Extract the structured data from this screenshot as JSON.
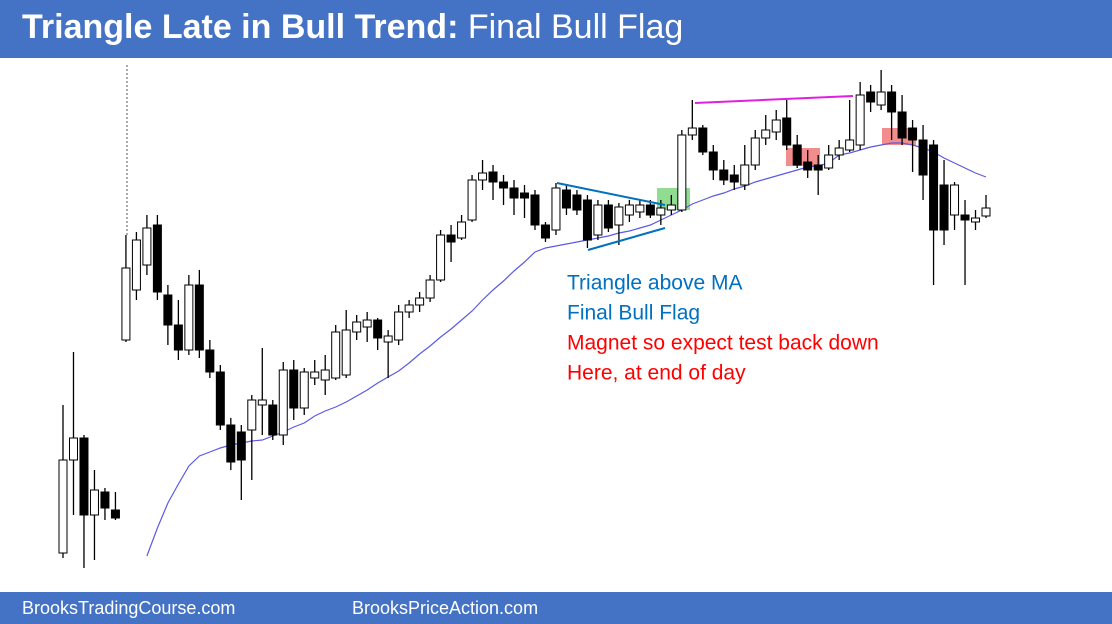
{
  "chart_data": {
    "type": "candlestick",
    "title": "Triangle Late in Bull Trend:",
    "subtitle": "Final Bull Flag",
    "annotations": [
      {
        "text": "Triangle above MA",
        "color": "#0070c0"
      },
      {
        "text": "Final Bull Flag",
        "color": "#0070c0"
      },
      {
        "text": "Magnet so expect test back down",
        "color": "#ff0000"
      },
      {
        "text": "Here, at end of day",
        "color": "#ff0000"
      }
    ],
    "footer": [
      "BrooksTradingCourse.com",
      "BrooksPriceAction.com"
    ],
    "ylim": [
      24,
      570
    ],
    "up_color": "#ffffff",
    "down_color": "#000000",
    "ma_color": "#5a5ae6",
    "open": [
      47,
      140,
      162,
      85,
      108,
      90,
      260,
      310,
      335,
      375,
      305,
      275,
      250,
      315,
      250,
      228,
      175,
      168,
      170,
      195,
      195,
      165,
      230,
      192,
      222,
      220,
      222,
      225,
      268,
      273,
      280,
      258,
      260,
      288,
      295,
      302,
      320,
      365,
      362,
      380,
      420,
      428,
      418,
      412,
      407,
      405,
      375,
      370,
      410,
      405,
      400,
      365,
      395,
      375,
      385,
      388,
      395,
      385,
      390,
      390,
      465,
      472,
      448,
      430,
      425,
      415,
      435,
      462,
      468,
      482,
      455,
      438,
      435,
      432,
      445,
      450,
      455,
      508,
      495,
      508,
      488,
      472,
      460,
      455,
      415,
      385,
      385,
      378,
      384
    ],
    "high": [
      195,
      248,
      165,
      130,
      112,
      108,
      365,
      368,
      385,
      385,
      315,
      300,
      325,
      330,
      260,
      235,
      182,
      175,
      205,
      252,
      200,
      238,
      240,
      232,
      240,
      245,
      275,
      290,
      285,
      288,
      282,
      270,
      295,
      300,
      308,
      325,
      370,
      375,
      385,
      425,
      440,
      435,
      425,
      420,
      415,
      410,
      378,
      417,
      415,
      410,
      405,
      400,
      400,
      397,
      400,
      400,
      400,
      400,
      405,
      470,
      500,
      475,
      455,
      440,
      435,
      455,
      470,
      485,
      490,
      500,
      465,
      450,
      445,
      455,
      460,
      500,
      518,
      515,
      530,
      515,
      505,
      480,
      475,
      460,
      440,
      418,
      400,
      390,
      405
    ],
    "low": [
      42,
      85,
      32,
      40,
      80,
      80,
      258,
      300,
      325,
      300,
      255,
      240,
      245,
      242,
      222,
      170,
      130,
      100,
      120,
      165,
      160,
      155,
      180,
      185,
      215,
      205,
      220,
      222,
      260,
      258,
      250,
      222,
      255,
      282,
      288,
      298,
      318,
      338,
      360,
      378,
      410,
      400,
      395,
      385,
      382,
      370,
      358,
      365,
      385,
      385,
      352,
      360,
      368,
      355,
      378,
      382,
      382,
      375,
      385,
      388,
      460,
      445,
      420,
      415,
      410,
      410,
      430,
      455,
      460,
      450,
      432,
      422,
      405,
      430,
      440,
      448,
      450,
      488,
      490,
      460,
      455,
      428,
      400,
      315,
      355,
      370,
      315,
      370,
      382
    ],
    "close": [
      140,
      162,
      85,
      110,
      92,
      82,
      332,
      360,
      372,
      308,
      275,
      250,
      315,
      250,
      228,
      175,
      138,
      140,
      200,
      200,
      165,
      230,
      192,
      228,
      228,
      230,
      268,
      270,
      278,
      280,
      262,
      264,
      288,
      295,
      302,
      320,
      365,
      358,
      378,
      420,
      427,
      418,
      412,
      402,
      402,
      375,
      362,
      412,
      392,
      390,
      360,
      395,
      372,
      393,
      395,
      395,
      385,
      392,
      395,
      465,
      472,
      448,
      430,
      420,
      418,
      435,
      462,
      470,
      480,
      455,
      435,
      430,
      430,
      445,
      452,
      460,
      505,
      498,
      508,
      488,
      462,
      460,
      425,
      370,
      370,
      415,
      380,
      382,
      392
    ],
    "ma": [
      null,
      null,
      null,
      null,
      null,
      null,
      null,
      null,
      44,
      72,
      97,
      116,
      134,
      144,
      148,
      152,
      155,
      157,
      159,
      160,
      164,
      168,
      173,
      177,
      184,
      189,
      193,
      198,
      204,
      210,
      217,
      223,
      229,
      237,
      246,
      254,
      263,
      271,
      280,
      289,
      300,
      310,
      319,
      329,
      338,
      348,
      352,
      354,
      356,
      358,
      360,
      362,
      364,
      367,
      369,
      372,
      375,
      380,
      385,
      390,
      396,
      400,
      404,
      407,
      411,
      414,
      418,
      421,
      424,
      427,
      430,
      433,
      434,
      437,
      445,
      447,
      450,
      453,
      455,
      457,
      457,
      455,
      452,
      448,
      442,
      437,
      432,
      427,
      423
    ]
  }
}
